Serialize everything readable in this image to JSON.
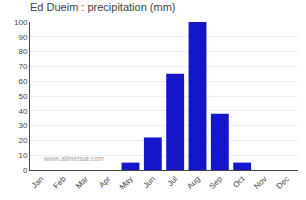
{
  "chart_data": {
    "type": "bar",
    "title": "Ed Dueim : precipitation (mm)",
    "categories": [
      "Jan",
      "Feb",
      "Mar",
      "Apr",
      "May",
      "Jun",
      "Jul",
      "Aug",
      "Sep",
      "Oct",
      "Nov",
      "Dec"
    ],
    "values": [
      0,
      0,
      0,
      0,
      5,
      22,
      65,
      100,
      38,
      5,
      0,
      0
    ],
    "color": "#1515cc",
    "ylim": [
      0,
      100
    ],
    "yticks": [
      0,
      10,
      20,
      30,
      40,
      50,
      60,
      70,
      80,
      90,
      100
    ],
    "grid": true,
    "annotations": [
      "www.allmetsat.com"
    ]
  }
}
